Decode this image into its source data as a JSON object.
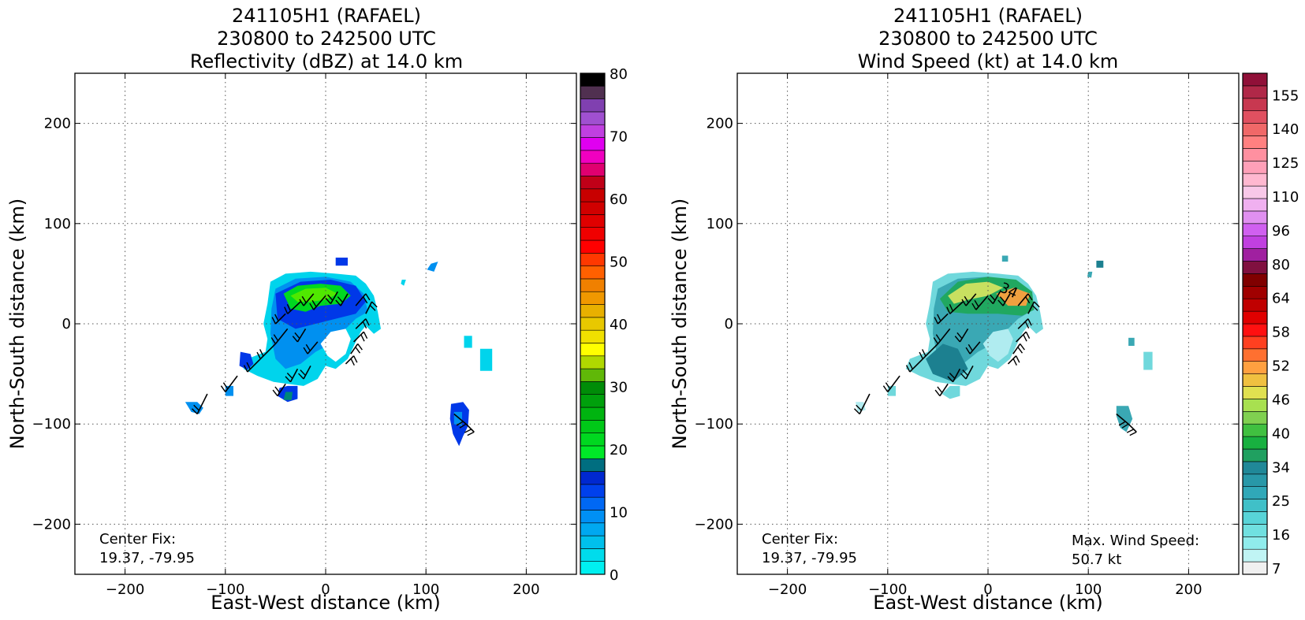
{
  "chart_data": [
    {
      "type": "heatmap",
      "title_lines": [
        "241105H1 (RAFAEL)",
        "230800 to 242500 UTC",
        "Reflectivity (dBZ) at 14.0 km"
      ],
      "xlabel": "East-West distance (km)",
      "ylabel": "North-South distance (km)",
      "xlim": [
        -250,
        250
      ],
      "ylim": [
        -250,
        250
      ],
      "xticks": [
        -200,
        -100,
        0,
        100,
        200
      ],
      "yticks": [
        200,
        100,
        0,
        -100,
        -200
      ],
      "grid": true,
      "annotation_left": [
        "Center Fix:",
        "19.37, -79.95"
      ],
      "annotation_right": [],
      "colorbar": {
        "min": 0,
        "max": 80,
        "ticks": [
          0,
          10,
          20,
          30,
          40,
          50,
          60,
          70,
          80
        ],
        "colors": [
          "#00f0f0",
          "#00dcec",
          "#00c0ec",
          "#00a8f0",
          "#0090f4",
          "#0068f4",
          "#0040ec",
          "#0028d0",
          "#006e80",
          "#00e828",
          "#00d820",
          "#00c818",
          "#00b410",
          "#00a00c",
          "#008c08",
          "#60b808",
          "#b0d800",
          "#ffff00",
          "#f0e000",
          "#e8c800",
          "#e8b000",
          "#f09800",
          "#f08000",
          "#ff6000",
          "#ff3800",
          "#ff0000",
          "#f00000",
          "#e00000",
          "#d00000",
          "#c80000",
          "#c00018",
          "#e00070",
          "#f000c0",
          "#e000f0",
          "#c040e0",
          "#a050d0",
          "#8040b0",
          "#503050",
          "#000000"
        ]
      },
      "fields": {
        "outline_color": "#0038e8",
        "mid_color": "#0090f0",
        "edge_color": "#00d4ec",
        "core_color": "#00d820",
        "bright_core_color": "#50e800",
        "teal_color": "#008878"
      }
    },
    {
      "type": "heatmap",
      "title_lines": [
        "241105H1 (RAFAEL)",
        "230800 to 242500 UTC",
        "Wind Speed (kt) at 14.0 km"
      ],
      "xlabel": "East-West distance (km)",
      "ylabel": "North-South distance (km)",
      "xlim": [
        -250,
        250
      ],
      "ylim": [
        -250,
        250
      ],
      "xticks": [
        -200,
        -100,
        0,
        100,
        200
      ],
      "yticks": [
        200,
        100,
        0,
        -100,
        -200
      ],
      "grid": true,
      "annotation_left": [
        "Center Fix:",
        "19.37, -79.95"
      ],
      "annotation_right": [
        "Max. Wind Speed:",
        "50.7 kt"
      ],
      "contour_label": "34",
      "colorbar": {
        "ticks": [
          "7",
          "16",
          "25",
          "34",
          "40",
          "46",
          "52",
          "58",
          "64",
          "80",
          "96",
          "110",
          "125",
          "140",
          "155"
        ],
        "colors": [
          "#f0f0f0",
          "#c0f4f4",
          "#90ecec",
          "#70e0e0",
          "#58d4d8",
          "#40c0c8",
          "#30a8b8",
          "#2898a8",
          "#208898",
          "#20a060",
          "#18b040",
          "#40c040",
          "#80d050",
          "#a8e050",
          "#e0e050",
          "#f0c040",
          "#ffa040",
          "#ff7030",
          "#ff4020",
          "#ff1010",
          "#e00000",
          "#c00000",
          "#a00000",
          "#800000",
          "#801040",
          "#a020a0",
          "#c040e0",
          "#d060f0",
          "#e090f0",
          "#f0b0f0",
          "#f8c8e8",
          "#ffb8d0",
          "#ffa0b8",
          "#ff90a0",
          "#ff8080",
          "#f06868",
          "#e05060",
          "#c83850",
          "#b02848",
          "#901038"
        ]
      },
      "fields": {
        "main_color": "#3aa8b4",
        "light_color": "#70d8dc",
        "pale_color": "#b0ecf0",
        "green_color": "#20a860",
        "lime_color": "#c8e060",
        "orange_color": "#f0a040",
        "dark_teal_color": "#1c8090"
      }
    }
  ]
}
